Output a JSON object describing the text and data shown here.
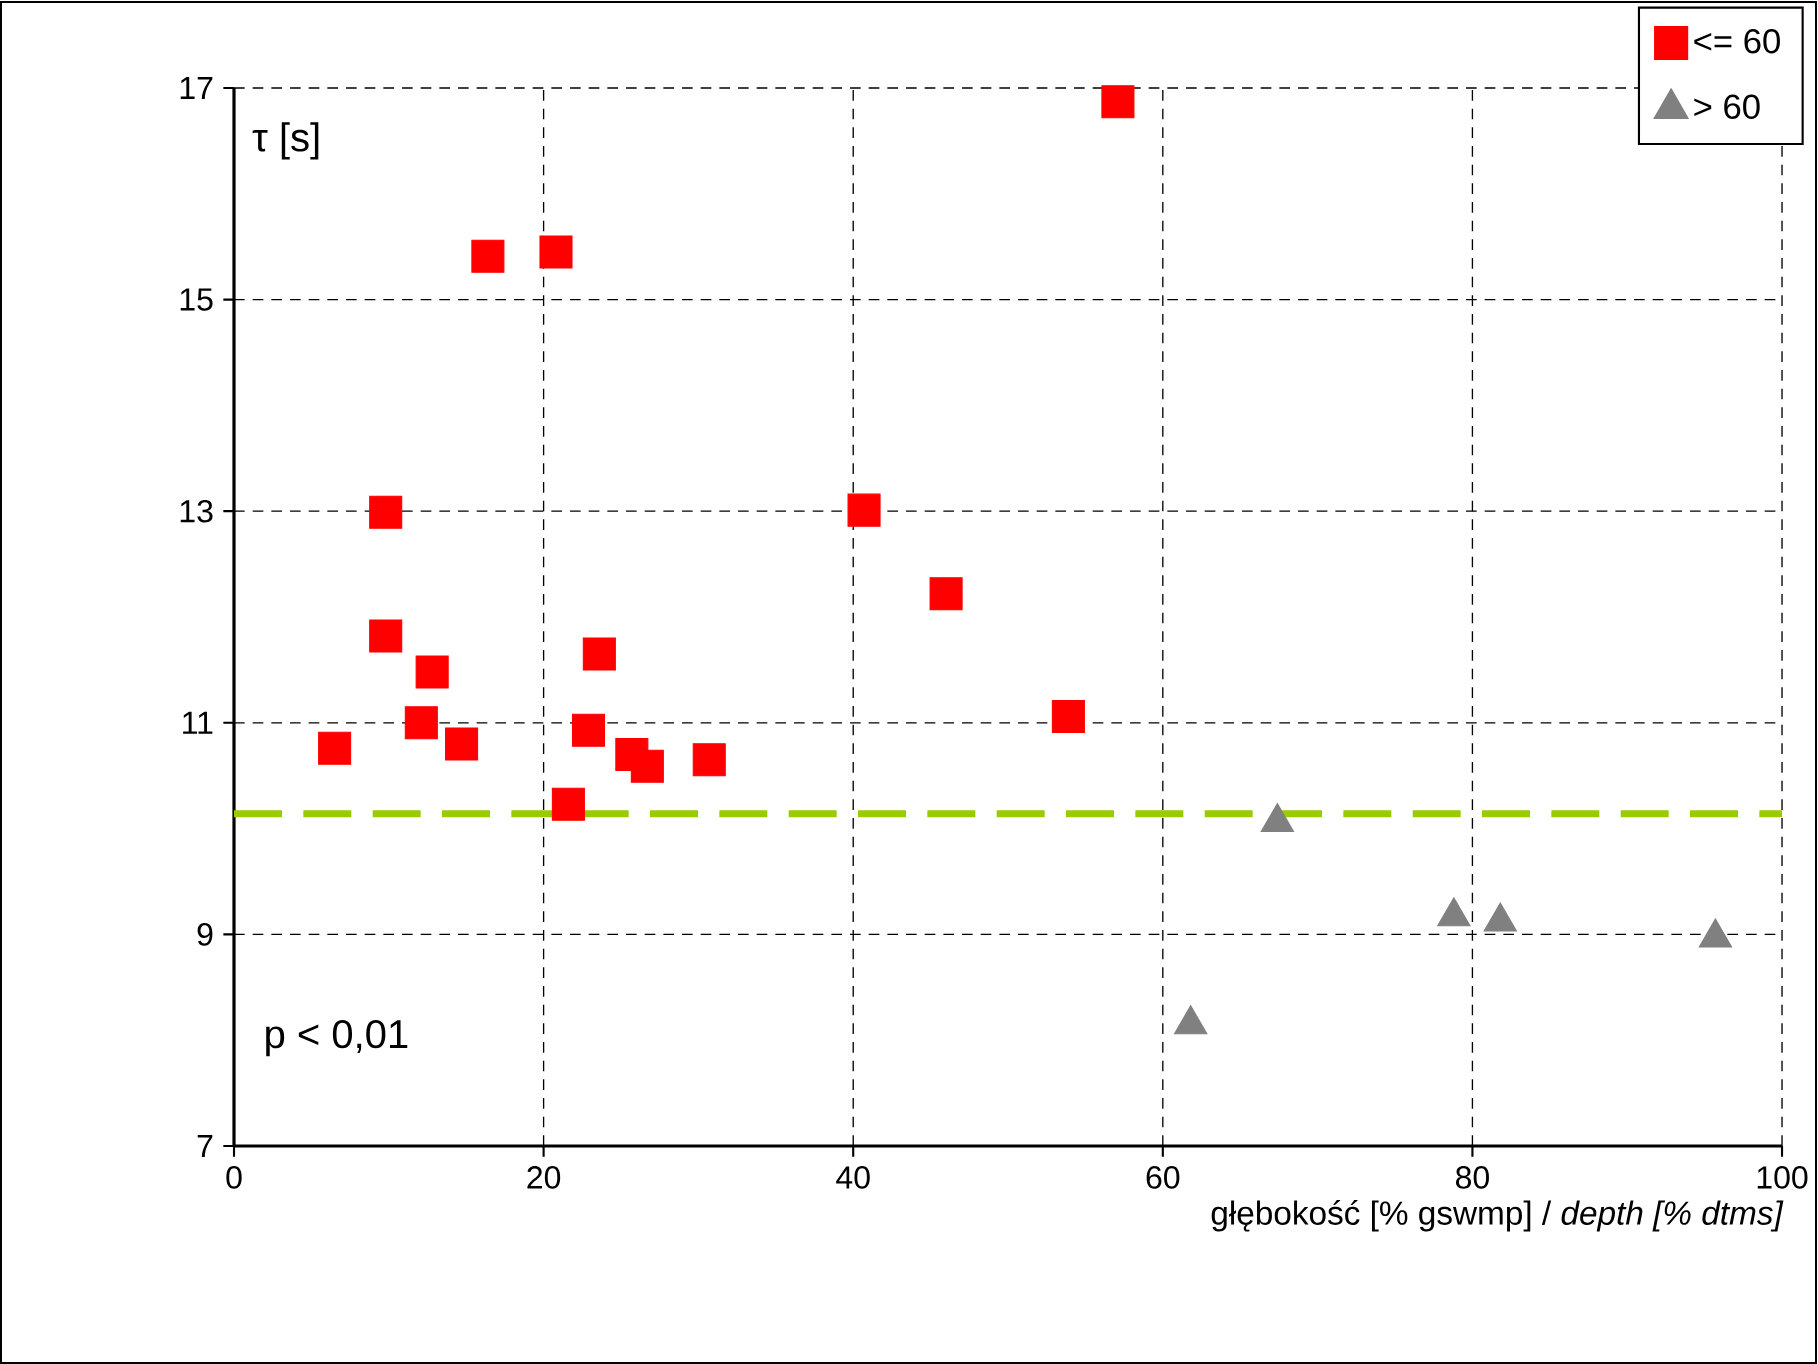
{
  "chart_data": {
    "type": "scatter",
    "xlabel": "głębokość [% gswmp] / *depth [% dtms]*",
    "ylabel": "τ [s]",
    "xlim": [
      0,
      100
    ],
    "xticks": [
      0,
      20,
      40,
      60,
      80,
      100
    ],
    "ylim": [
      7,
      17
    ],
    "yticks": [
      7,
      9,
      11,
      13,
      15,
      17
    ],
    "grid": true,
    "legend": "top right",
    "series": [
      {
        "name": "<= 60",
        "color": "#ff0000",
        "marker": "square",
        "x": [
          6.5,
          9.8,
          9.8,
          12.8,
          12.1,
          14.7,
          16.4,
          20.8,
          21.6,
          22.9,
          23.6,
          25.7,
          26.7,
          30.7,
          40.7,
          46.0,
          53.9,
          57.1
        ],
        "values": [
          10.76,
          12.99,
          11.82,
          11.48,
          11.0,
          10.8,
          15.41,
          15.45,
          10.23,
          10.93,
          11.65,
          10.7,
          10.59,
          10.65,
          13.01,
          12.22,
          11.06,
          16.87
        ]
      },
      {
        "name": "> 60",
        "color": "#808080",
        "marker": "triangle",
        "x": [
          61.8,
          67.4,
          78.8,
          81.8,
          95.7
        ],
        "values": [
          8.15,
          10.06,
          9.17,
          9.12,
          8.97
        ]
      }
    ],
    "ref_lines": [
      {
        "axis": "y",
        "value": 10.14,
        "color": "#99cc00",
        "line_style": "dashed"
      }
    ],
    "annotations": [
      "p < 0,01"
    ]
  }
}
